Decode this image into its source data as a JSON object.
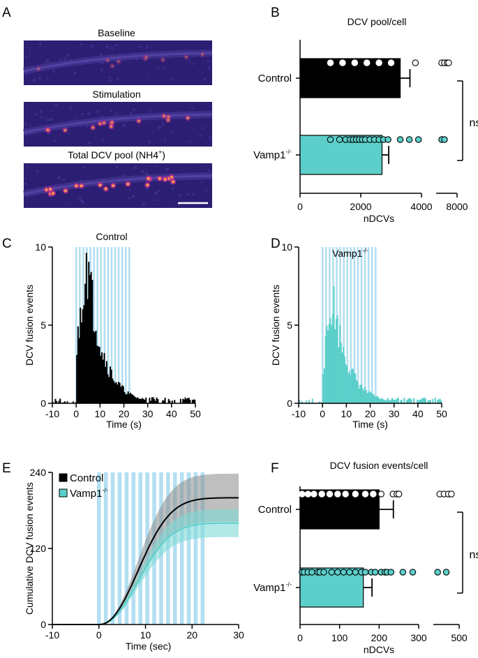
{
  "colors": {
    "control": "#000000",
    "vamp": "#5ccfca",
    "stim": "#b3dff2",
    "micrograph_bg": "#2c1e73",
    "control_band": "#8a8a8a",
    "vamp_band": "#7fdad5"
  },
  "panel_a": {
    "letter": "A",
    "titles": [
      "Baseline",
      "Stimulation",
      "Total DCV pool (NH4⁺)"
    ],
    "title_plain": [
      "Baseline",
      "Stimulation",
      "Total DCV pool (NH4"
    ],
    "superscript": "+",
    "close_paren": ")",
    "scale_bar": "scale-bar"
  },
  "panel_b": {
    "letter": "B",
    "chart_data": {
      "type": "bar",
      "orientation": "horizontal",
      "title": "DCV pool/cell",
      "xlabel": "nDCVs",
      "categories": [
        "Control",
        "Vamp1-/-"
      ],
      "values": [
        3300,
        2700
      ],
      "errors": [
        320,
        220
      ],
      "xticks": [
        0,
        2000,
        4000,
        8000
      ],
      "xtick_labels": [
        "0",
        "2000",
        "4000",
        "8000"
      ],
      "axis_break": [
        4000,
        6500
      ],
      "significance": "ns",
      "points": {
        "Control": [
          1000,
          1400,
          1800,
          2200,
          2600,
          3000,
          3800,
          6900,
          7100,
          7300,
          7400
        ],
        "Vamp1-/-": [
          1000,
          1300,
          1500,
          1650,
          1750,
          1850,
          1950,
          2050,
          2150,
          2300,
          2450,
          2600,
          2750,
          2900,
          3300,
          3600,
          3900,
          6900,
          7100
        ]
      }
    }
  },
  "panel_c": {
    "letter": "C",
    "chart_data": {
      "type": "histogram",
      "title": "Control",
      "xlabel": "Time (s)",
      "ylabel": "DCV fusion events",
      "xlim": [
        -10,
        50
      ],
      "ylim": [
        0,
        10
      ],
      "xticks": [
        -10,
        0,
        10,
        20,
        30,
        40,
        50
      ],
      "yticks": [
        0,
        5,
        10
      ],
      "stimulation_window": [
        0,
        23
      ],
      "bin_width": 0.5,
      "peak": 9.6
    }
  },
  "panel_d": {
    "letter": "D",
    "chart_data": {
      "type": "histogram",
      "title": "Vamp1-/-",
      "xlabel": "Time (s)",
      "ylabel": "DCV fusion events",
      "xlim": [
        -10,
        50
      ],
      "ylim": [
        0,
        10
      ],
      "xticks": [
        -10,
        0,
        10,
        20,
        30,
        40,
        50
      ],
      "yticks": [
        0,
        5,
        10
      ],
      "stimulation_window": [
        0,
        23
      ],
      "bin_width": 0.5,
      "peak": 6.8
    }
  },
  "panel_e": {
    "letter": "E",
    "chart_data": {
      "type": "line",
      "xlabel": "Time (sec)",
      "ylabel": "Cumulative DCV fusion events",
      "xlim": [
        -10,
        30
      ],
      "ylim": [
        0,
        240
      ],
      "xticks": [
        -10,
        0,
        10,
        20,
        30
      ],
      "yticks": [
        0,
        120,
        240
      ],
      "stimulation_window": [
        0,
        23
      ],
      "legend": [
        "Control",
        "Vamp1-/-"
      ],
      "series": [
        {
          "name": "Control",
          "plateau": 200,
          "band": 38
        },
        {
          "name": "Vamp1-/-",
          "plateau": 160,
          "band": 22
        }
      ]
    }
  },
  "panel_f": {
    "letter": "F",
    "chart_data": {
      "type": "bar",
      "orientation": "horizontal",
      "title": "DCV fusion events/cell",
      "xlabel": "nDCVs",
      "categories": [
        "Control",
        "Vamp1-/-"
      ],
      "values": [
        200,
        160
      ],
      "errors": [
        36,
        22
      ],
      "xticks": [
        0,
        100,
        200,
        300,
        500
      ],
      "xtick_labels": [
        "0",
        "100",
        "200",
        "300",
        "500"
      ],
      "axis_break": [
        300,
        440
      ],
      "significance": "ns",
      "points": {
        "Control": [
          5,
          20,
          35,
          55,
          75,
          95,
          115,
          140,
          165,
          185,
          205,
          235,
          245,
          250,
          455,
          465,
          475,
          482
        ],
        "Vamp1-/-": [
          5,
          10,
          20,
          30,
          45,
          50,
          60,
          80,
          95,
          110,
          125,
          140,
          155,
          165,
          180,
          190,
          205,
          215,
          220,
          230,
          260,
          285,
          450,
          470
        ]
      }
    }
  },
  "labels": {
    "control": "Control",
    "vamp_base": "Vamp1",
    "vamp_sup": "-/-",
    "ns": "ns"
  }
}
